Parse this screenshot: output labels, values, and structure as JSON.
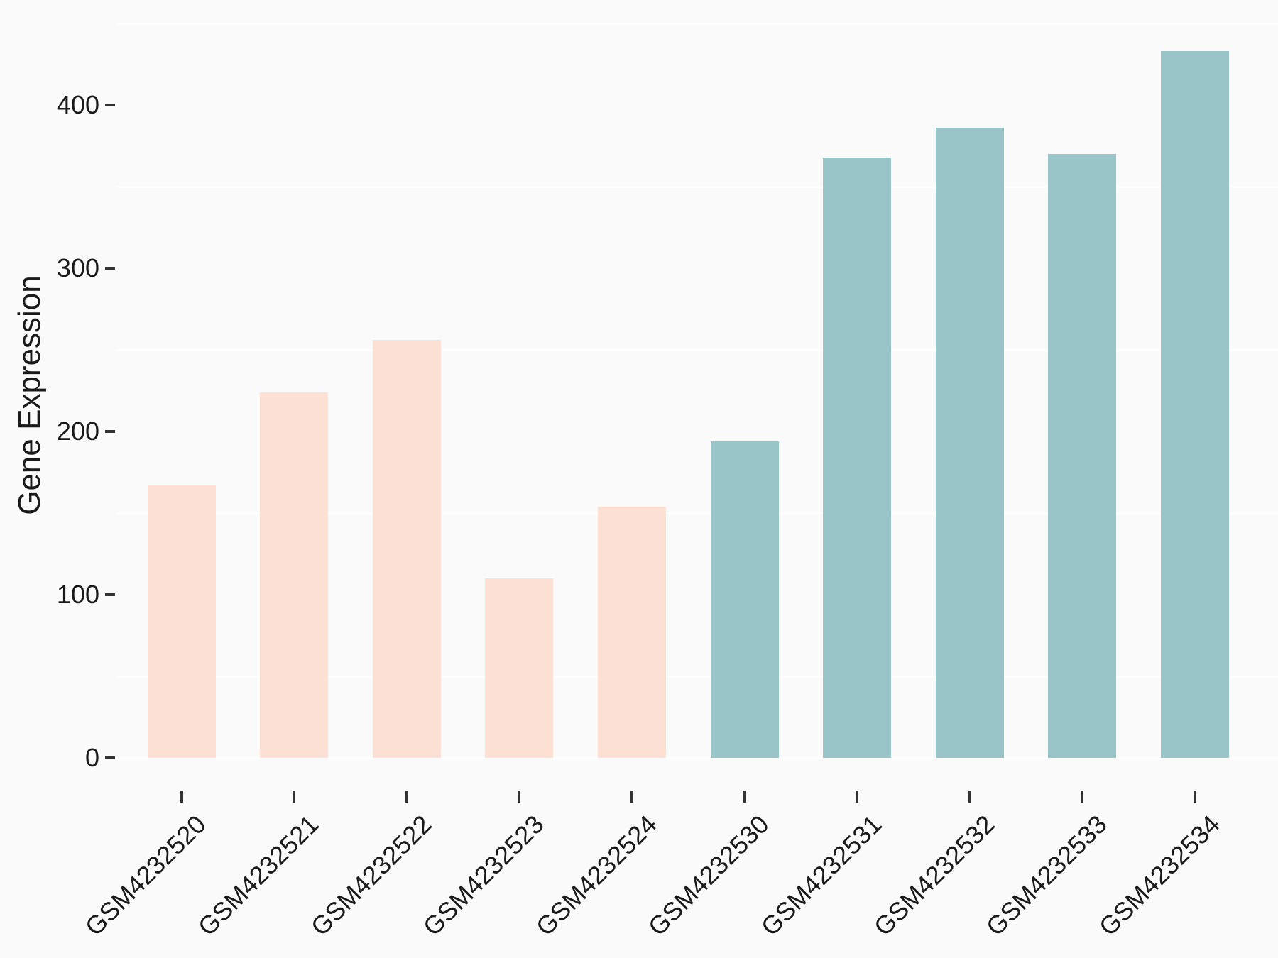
{
  "chart_data": {
    "type": "bar",
    "title": "",
    "xlabel": "",
    "ylabel": "Gene Expression",
    "categories": [
      "GSM4232520",
      "GSM4232521",
      "GSM4232522",
      "GSM4232523",
      "GSM4232524",
      "GSM4232530",
      "GSM4232531",
      "GSM4232532",
      "GSM4232533",
      "GSM4232534"
    ],
    "values": [
      167,
      224,
      256,
      110,
      154,
      194,
      368,
      386,
      370,
      433
    ],
    "groups": [
      "pink",
      "pink",
      "pink",
      "pink",
      "pink",
      "teal",
      "teal",
      "teal",
      "teal",
      "teal"
    ],
    "group_colors": {
      "pink": "#FDE0D4",
      "teal": "#9AC5C8"
    },
    "y_ticks": [
      0,
      100,
      200,
      300,
      400
    ],
    "minor_gridlines": [
      0,
      50,
      150,
      250,
      350,
      450
    ],
    "ylim": [
      -20,
      464
    ],
    "legend": "none",
    "grid": "horizontal white minor gridlines on light gray panel"
  },
  "colors": {
    "background": "#FAFAFA",
    "gridline": "#FFFFFF",
    "tick": "#333333",
    "text": "#1A1A1A",
    "bar_pink": "#FDE0D4",
    "bar_teal": "#9AC5C8"
  }
}
